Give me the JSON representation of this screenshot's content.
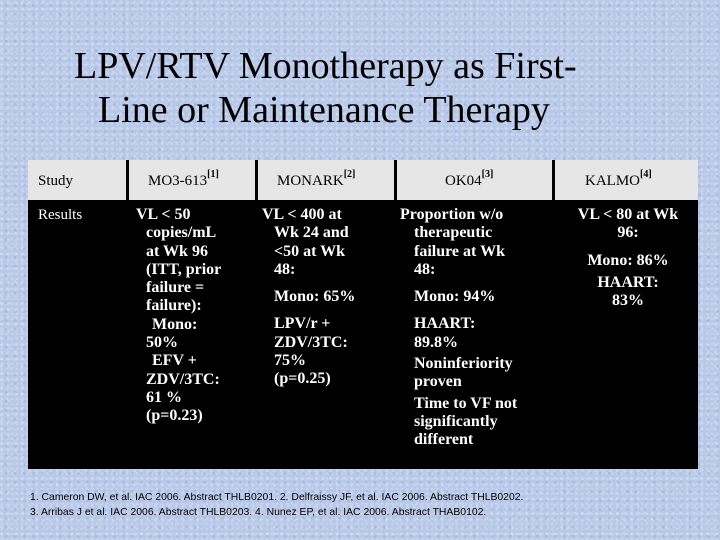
{
  "title": {
    "line1": "LPV/RTV Monotherapy as First-",
    "line2": "Line or Maintenance Therapy"
  },
  "table": {
    "headers": [
      {
        "label": "Study",
        "ref": ""
      },
      {
        "label": "MO3-613",
        "ref": "[1]"
      },
      {
        "label": "MONARK",
        "ref": "[2]"
      },
      {
        "label": "OK04",
        "ref": "[3]"
      },
      {
        "label": "KALMO",
        "ref": "[4]"
      }
    ],
    "row_label": "Results",
    "mo3613": [
      "VL < 50",
      "copies/mL",
      "at Wk 96",
      "(ITT, prior",
      "failure =",
      "failure):",
      "Mono:",
      "50%",
      "EFV +",
      "ZDV/3TC:",
      "61 %",
      "(p=0.23)"
    ],
    "monark": [
      "VL < 400 at",
      "Wk 24 and",
      "<50 at Wk",
      "48:",
      "Mono: 65%",
      "LPV/r +",
      "ZDV/3TC:",
      "75%",
      "(p=0.25)"
    ],
    "ok04": [
      "Proportion w/o",
      "therapeutic",
      "failure at Wk",
      "48:",
      "Mono: 94%",
      "HAART:",
      "89.8%",
      "Noninferiority",
      "proven",
      "Time to VF not",
      "significantly",
      "different"
    ],
    "kalmo": [
      "VL < 80 at Wk",
      "96:",
      "Mono: 86%",
      "HAART:",
      "83%"
    ]
  },
  "footnotes": {
    "line1": "1. Cameron DW, et al. IAC 2006. Abstract THLB0201. 2. Delfraissy JF, et al. IAC 2006. Abstract THLB0202.",
    "line2": "3. Arribas J et al. IAC 2006. Abstract THLB0203. 4. Nunez EP, et al. IAC 2006. Abstract THAB0102."
  }
}
